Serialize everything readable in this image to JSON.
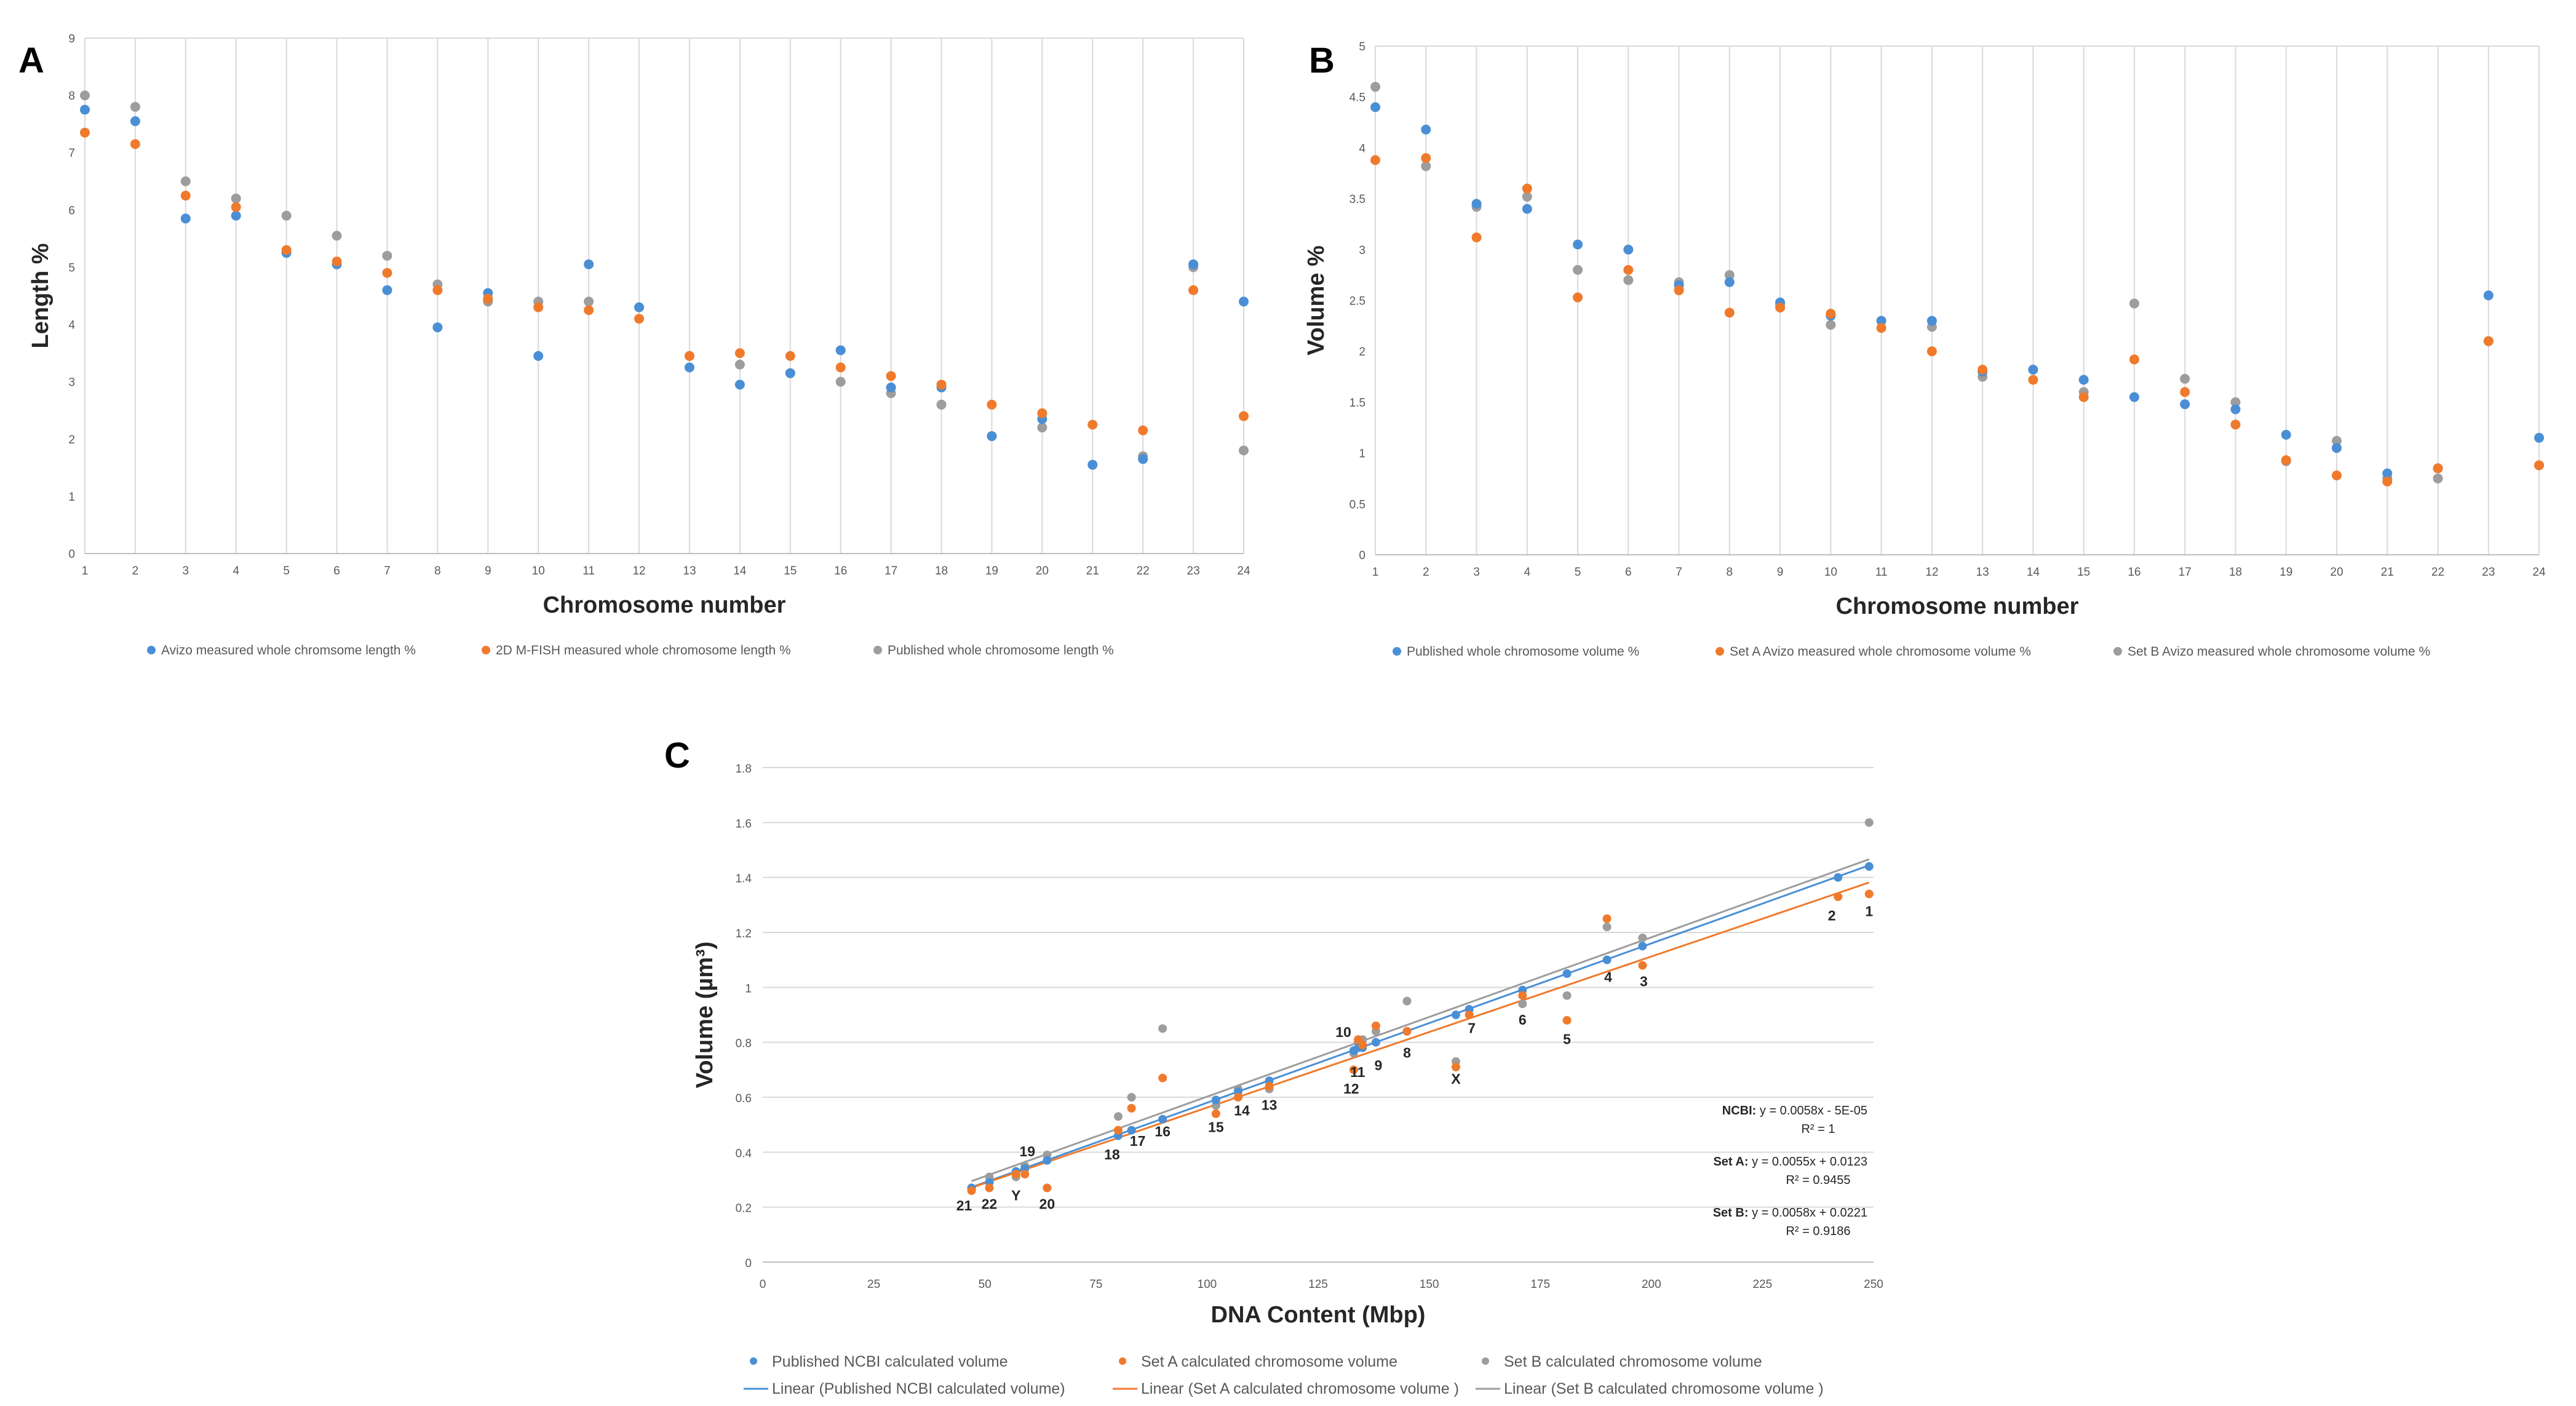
{
  "colors": {
    "blue": "#4a8fd6",
    "orange": "#f07a2c",
    "grey": "#9d9d9d"
  },
  "chart_data": [
    {
      "panel": "A",
      "type": "scatter",
      "title": "",
      "xlabel": "Chromosome number",
      "ylabel": "Length %",
      "xlim": [
        1,
        24
      ],
      "ylim": [
        0,
        9
      ],
      "x_ticks": [
        "1",
        "2",
        "3",
        "4",
        "5",
        "6",
        "7",
        "8",
        "9",
        "10",
        "11",
        "12",
        "13",
        "14",
        "15",
        "16",
        "17",
        "18",
        "19",
        "20",
        "21",
        "22",
        "23",
        "24"
      ],
      "y_ticks": [
        "0",
        "1",
        "2",
        "3",
        "4",
        "5",
        "6",
        "7",
        "8",
        "9"
      ],
      "grid": "vertical",
      "legend_position": "bottom",
      "series": [
        {
          "name": "Avizo measured whole chromsome length %",
          "color_key": "blue",
          "values": [
            7.75,
            7.55,
            5.85,
            5.9,
            5.25,
            5.05,
            4.6,
            3.95,
            4.55,
            3.45,
            5.05,
            4.3,
            3.25,
            2.95,
            3.15,
            3.55,
            2.9,
            2.9,
            2.05,
            2.35,
            1.55,
            1.65,
            5.05,
            4.4
          ]
        },
        {
          "name": "2D M-FISH measured whole chromosome length %",
          "color_key": "orange",
          "values": [
            7.35,
            7.15,
            6.25,
            6.05,
            5.3,
            5.1,
            4.9,
            4.6,
            4.45,
            4.3,
            4.25,
            4.1,
            3.45,
            3.5,
            3.45,
            3.25,
            3.1,
            2.95,
            2.6,
            2.45,
            2.25,
            2.15,
            4.6,
            2.4
          ]
        },
        {
          "name": "Published whole chromosome length %",
          "color_key": "grey",
          "values": [
            8.0,
            7.8,
            6.5,
            6.2,
            5.9,
            5.55,
            5.2,
            4.7,
            4.4,
            4.4,
            4.4,
            4.3,
            3.45,
            3.3,
            3.15,
            3.0,
            2.8,
            2.6,
            2.05,
            2.2,
            1.55,
            1.7,
            5.0,
            1.8
          ]
        }
      ]
    },
    {
      "panel": "B",
      "type": "scatter",
      "title": "",
      "xlabel": "Chromosome number",
      "ylabel": "Volume %",
      "xlim": [
        1,
        24
      ],
      "ylim": [
        0,
        5
      ],
      "x_ticks": [
        "1",
        "2",
        "3",
        "4",
        "5",
        "6",
        "7",
        "8",
        "9",
        "10",
        "11",
        "12",
        "13",
        "14",
        "15",
        "16",
        "17",
        "18",
        "19",
        "20",
        "21",
        "22",
        "23",
        "24"
      ],
      "y_ticks": [
        "0",
        "0.5",
        "1",
        "1.5",
        "2",
        "2.5",
        "3",
        "3.5",
        "4",
        "4.5",
        "5"
      ],
      "grid": "vertical",
      "legend_position": "bottom",
      "series": [
        {
          "name": "Published whole chromosome volume %",
          "color_key": "blue",
          "values": [
            4.4,
            4.18,
            3.45,
            3.4,
            3.05,
            3.0,
            2.65,
            2.68,
            2.48,
            2.35,
            2.3,
            2.3,
            1.8,
            1.82,
            1.72,
            1.55,
            1.48,
            1.43,
            1.18,
            1.05,
            0.8,
            0.85,
            2.55,
            1.15
          ]
        },
        {
          "name": "Set A Avizo measured whole chromosome volume %",
          "color_key": "orange",
          "values": [
            3.88,
            3.9,
            3.12,
            3.6,
            2.53,
            2.8,
            2.6,
            2.38,
            2.43,
            2.37,
            2.23,
            2.0,
            1.82,
            1.72,
            1.55,
            1.92,
            1.6,
            1.28,
            0.93,
            0.78,
            0.72,
            0.85,
            2.1,
            0.88
          ]
        },
        {
          "name": "Set B Avizo measured whole chromosome volume %",
          "color_key": "grey",
          "values": [
            4.6,
            3.82,
            3.42,
            3.52,
            2.8,
            2.7,
            2.68,
            2.75,
            2.46,
            2.26,
            2.3,
            2.24,
            1.75,
            1.82,
            1.6,
            2.47,
            1.73,
            1.5,
            0.92,
            1.12,
            0.75,
            0.75,
            2.1,
            0.88
          ]
        }
      ]
    },
    {
      "panel": "C",
      "type": "scatter",
      "title": "",
      "xlabel": "DNA Content (Mbp)",
      "ylabel": "Volume (µm³)",
      "xlim": [
        0,
        250
      ],
      "ylim": [
        0,
        1.8
      ],
      "x_ticks": [
        "0",
        "25",
        "50",
        "75",
        "100",
        "125",
        "150",
        "175",
        "200",
        "225",
        "250"
      ],
      "y_ticks": [
        "0",
        "0.2",
        "0.4",
        "0.6",
        "0.8",
        "1",
        "1.2",
        "1.4",
        "1.6",
        "1.8"
      ],
      "grid": "horizontal",
      "legend_position": "bottom",
      "point_labels": [
        {
          "text": "1",
          "x": 249,
          "y": 1.34
        },
        {
          "text": "2",
          "x": 242,
          "y": 1.32
        },
        {
          "text": "3",
          "x": 198,
          "y": 1.08
        },
        {
          "text": "4",
          "x": 190,
          "y": 1.1
        },
        {
          "text": "5",
          "x": 181,
          "y": 0.87
        },
        {
          "text": "6",
          "x": 171,
          "y": 0.94
        },
        {
          "text": "7",
          "x": 159,
          "y": 0.91
        },
        {
          "text": "8",
          "x": 145,
          "y": 0.82
        },
        {
          "text": "9",
          "x": 138,
          "y": 0.77
        },
        {
          "text": "10",
          "x": 134,
          "y": 0.81
        },
        {
          "text": "11",
          "x": 135,
          "y": 0.75
        },
        {
          "text": "12",
          "x": 133,
          "y": 0.69
        },
        {
          "text": "13",
          "x": 114,
          "y": 0.63
        },
        {
          "text": "14",
          "x": 107,
          "y": 0.61
        },
        {
          "text": "15",
          "x": 102,
          "y": 0.55
        },
        {
          "text": "16",
          "x": 90,
          "y": 0.53
        },
        {
          "text": "17",
          "x": 83,
          "y": 0.49
        },
        {
          "text": "18",
          "x": 80,
          "y": 0.45
        },
        {
          "text": "19",
          "x": 59,
          "y": 0.34
        },
        {
          "text": "20",
          "x": 64,
          "y": 0.27
        },
        {
          "text": "21",
          "x": 47,
          "y": 0.26
        },
        {
          "text": "22",
          "x": 51,
          "y": 0.27
        },
        {
          "text": "Y",
          "x": 57,
          "y": 0.31
        },
        {
          "text": "X",
          "x": 156,
          "y": 0.73
        }
      ],
      "series": [
        {
          "name": "Published NCBI calculated volume",
          "color_key": "blue",
          "x": [
            249,
            242,
            198,
            190,
            181,
            171,
            159,
            145,
            138,
            134,
            135,
            133,
            114,
            107,
            102,
            90,
            83,
            80,
            59,
            64,
            47,
            51,
            57,
            156
          ],
          "y": [
            1.44,
            1.4,
            1.15,
            1.1,
            1.05,
            0.99,
            0.92,
            0.84,
            0.8,
            0.78,
            0.78,
            0.77,
            0.66,
            0.62,
            0.59,
            0.52,
            0.48,
            0.46,
            0.34,
            0.37,
            0.27,
            0.29,
            0.33,
            0.9
          ]
        },
        {
          "name": "Set A calculated chromosome volume",
          "color_key": "orange",
          "x": [
            249,
            242,
            198,
            190,
            181,
            171,
            159,
            145,
            138,
            134,
            135,
            133,
            114,
            107,
            102,
            90,
            83,
            80,
            59,
            64,
            47,
            51,
            57,
            156
          ],
          "y": [
            1.34,
            1.33,
            1.08,
            1.25,
            0.88,
            0.97,
            0.9,
            0.84,
            0.86,
            0.81,
            0.79,
            0.7,
            0.64,
            0.6,
            0.54,
            0.67,
            0.56,
            0.48,
            0.32,
            0.27,
            0.26,
            0.27,
            0.32,
            0.71
          ]
        },
        {
          "name": "Set B calculated chromosome volume",
          "color_key": "grey",
          "x": [
            249,
            242,
            198,
            190,
            181,
            171,
            159,
            145,
            138,
            134,
            135,
            133,
            114,
            107,
            102,
            90,
            83,
            80,
            59,
            64,
            47,
            51,
            57,
            156
          ],
          "y": [
            1.6,
            1.33,
            1.18,
            1.22,
            0.97,
            0.94,
            0.92,
            0.95,
            0.84,
            0.8,
            0.81,
            0.76,
            0.63,
            0.63,
            0.57,
            0.85,
            0.6,
            0.53,
            0.35,
            0.39,
            0.27,
            0.31,
            0.31,
            0.73
          ]
        }
      ],
      "trendlines": [
        {
          "name": "Linear (Published NCBI calculated volume)",
          "color_key": "blue",
          "slope": 0.0058,
          "intercept": -5e-05
        },
        {
          "name": "Linear (Set A calculated chromosome volume )",
          "color_key": "orange",
          "slope": 0.0055,
          "intercept": 0.0123
        },
        {
          "name": "Linear (Set B calculated chromosome volume )",
          "color_key": "grey",
          "slope": 0.0058,
          "intercept": 0.0221
        }
      ],
      "equations": [
        {
          "label": "NCBI:",
          "eq": "y = 0.0058x - 5E-05",
          "r2": "R² = 1"
        },
        {
          "label": "Set A:",
          "eq": "y = 0.0055x + 0.0123",
          "r2": "R² = 0.9455"
        },
        {
          "label": "Set B:",
          "eq": "y = 0.0058x + 0.0221",
          "r2": "R² = 0.9186"
        }
      ]
    }
  ]
}
